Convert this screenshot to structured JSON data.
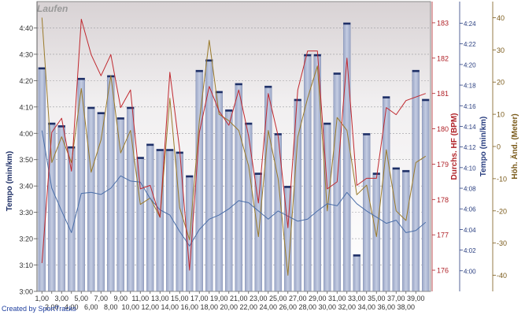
{
  "chart_data": {
    "type": "bar",
    "title": "Laufen",
    "credit": "Created by SportTracks",
    "x_tick_labels": [
      "1,00",
      "2,00",
      "3,00",
      "4,00",
      "5,00",
      "6,00",
      "7,00",
      "8,00",
      "9,00",
      "10,00",
      "11,00",
      "12,00",
      "13,00",
      "14,00",
      "15,00",
      "16,00",
      "17,00",
      "18,00",
      "19,00",
      "20,00",
      "21,00",
      "22,00",
      "23,00",
      "24,00",
      "25,00",
      "26,00",
      "27,00",
      "28,00",
      "29,00",
      "30,00",
      "31,00",
      "32,00",
      "33,00",
      "34,00",
      "35,00",
      "36,00",
      "37,00",
      "38,00",
      "39,00"
    ],
    "x": [
      1,
      2,
      3,
      4,
      5,
      6,
      7,
      8,
      9,
      10,
      11,
      12,
      13,
      14,
      15,
      16,
      17,
      18,
      19,
      20,
      21,
      22,
      23,
      24,
      25,
      26,
      27,
      28,
      29,
      30,
      31,
      32,
      33,
      34,
      35,
      36,
      37,
      38,
      39,
      40
    ],
    "axes": {
      "left_tempo": {
        "label": "Tempo (min/km)",
        "ticks": [
          "3:00",
          "3:10",
          "3:20",
          "3:30",
          "3:40",
          "3:50",
          "4:00",
          "4:10",
          "4:20",
          "4:30",
          "4:40"
        ],
        "range_sec": [
          180,
          290
        ]
      },
      "hr": {
        "label": "Durchs. HF (BPM)",
        "ticks": [
          "176",
          "177",
          "178",
          "179",
          "180",
          "181",
          "182",
          "183"
        ],
        "range": [
          175.4,
          183.6
        ]
      },
      "tempo_right": {
        "label": "Tempo (min/km)",
        "ticks": [
          "4:00",
          "4:02",
          "4:04",
          "4:06",
          "4:08",
          "4:10",
          "4:12",
          "4:14",
          "4:16",
          "4:18",
          "4:20",
          "4:22",
          "4:24"
        ],
        "range_sec": [
          238.0,
          266.1
        ]
      },
      "elev": {
        "label": "Höh. Änd. (Meter)",
        "ticks": [
          "-40",
          "-30",
          "-20",
          "-10",
          "0",
          "10",
          "20",
          "30",
          "40"
        ],
        "range": [
          -45,
          45
        ]
      }
    },
    "series": [
      {
        "name": "Tempo (min/km)",
        "kind": "bar",
        "axis": "left_tempo",
        "color": "#b8c2dc",
        "values_sec": [
          265,
          244,
          243,
          235,
          261,
          250,
          248,
          262,
          246,
          250,
          231,
          236,
          234,
          234,
          233,
          224,
          264,
          268,
          256,
          249,
          259,
          244,
          225,
          258,
          240,
          220,
          253,
          270,
          270,
          244,
          263,
          282,
          194,
          240,
          225,
          254,
          227,
          226,
          264,
          253
        ]
      },
      {
        "name": "Tempo (min/km) right",
        "kind": "line",
        "axis": "tempo_right",
        "color": "#4a6ea8",
        "values_sec": [
          253.6,
          248.0,
          245.8,
          243.7,
          247.5,
          247.6,
          247.4,
          248.0,
          249.2,
          248.7,
          248.6,
          247.0,
          245.9,
          245.4,
          243.8,
          242.4,
          244.0,
          245.0,
          245.4,
          246.0,
          246.8,
          246.6,
          245.8,
          245.0,
          245.8,
          245.3,
          244.8,
          245.0,
          245.8,
          246.5,
          246.3,
          247.6,
          246.5,
          245.8,
          245.2,
          244.6,
          244.9,
          243.7,
          243.9,
          244.7
        ]
      },
      {
        "name": "Durchs. HF (BPM)",
        "kind": "line",
        "axis": "hr",
        "color": "#c0282e",
        "values": [
          176.2,
          179.9,
          180.3,
          178.8,
          183.1,
          182.1,
          181.5,
          182.1,
          180.6,
          181.1,
          178.3,
          178.4,
          177.5,
          181.6,
          179.4,
          176.0,
          179.9,
          181.2,
          180.5,
          180.1,
          181.1,
          179.8,
          177.9,
          181.0,
          179.8,
          177.2,
          181.1,
          182.2,
          182.2,
          178.3,
          178.5,
          182.0,
          178.4,
          178.6,
          178.6,
          180.6,
          180.4,
          180.8,
          180.9,
          181.0
        ]
      },
      {
        "name": "Höh. Änd. (Meter)",
        "kind": "line",
        "axis": "elev",
        "color": "#9a7a2a",
        "values": [
          40,
          -5,
          3,
          -5,
          18,
          -8,
          2,
          22,
          -2,
          5,
          -18,
          -16,
          -22,
          15,
          -19,
          -29,
          8,
          33,
          10,
          8,
          5,
          -6,
          -28,
          5,
          -10,
          -40,
          3,
          15,
          25,
          -20,
          9,
          5,
          -15,
          -12,
          -28,
          -1,
          -20,
          -23,
          -5,
          -3
        ]
      }
    ],
    "grid": true,
    "legend": "none"
  }
}
